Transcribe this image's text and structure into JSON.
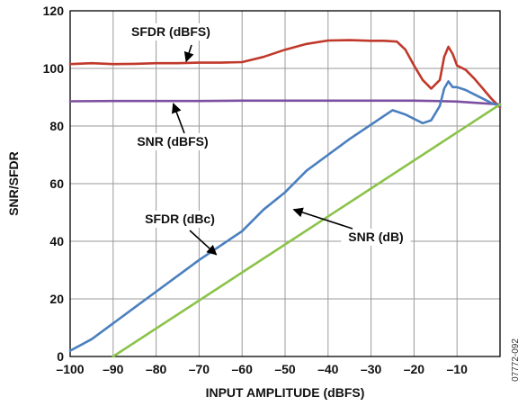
{
  "chart_data": {
    "type": "line",
    "xlabel": "INPUT AMPLITUDE (dBFS)",
    "ylabel": "SNR/SFDR",
    "xlim": [
      -100,
      0
    ],
    "ylim": [
      0,
      120
    ],
    "x_ticks": [
      "–100",
      "–90",
      "–80",
      "–70",
      "–60",
      "–50",
      "–40",
      "–30",
      "–20",
      "–10"
    ],
    "x_tick_values": [
      -100,
      -90,
      -80,
      -70,
      -60,
      -50,
      -40,
      -30,
      -20,
      -10
    ],
    "y_ticks": [
      "0",
      "20",
      "40",
      "60",
      "80",
      "100",
      "120"
    ],
    "y_tick_values": [
      0,
      20,
      40,
      60,
      80,
      100,
      120
    ],
    "grid": true,
    "series": [
      {
        "name": "SFDR (dBFS)",
        "color": "#c0392b",
        "x": [
          -100,
          -95,
          -90,
          -85,
          -80,
          -75,
          -70,
          -65,
          -60,
          -55,
          -50,
          -45,
          -40,
          -35,
          -30,
          -27,
          -24,
          -22,
          -20,
          -18,
          -16,
          -14,
          -13,
          -12,
          -11,
          -10,
          -8,
          -6,
          -4,
          -2,
          0
        ],
        "y": [
          101.5,
          101.8,
          101.5,
          101.6,
          101.8,
          101.8,
          102,
          102,
          102.2,
          104,
          106.5,
          108.5,
          109.7,
          109.8,
          109.6,
          109.6,
          109.3,
          106.5,
          101,
          96,
          93,
          96,
          104,
          107.5,
          105,
          101,
          99.5,
          96.5,
          93,
          89.5,
          86.5
        ]
      },
      {
        "name": "SNR (dBFS)",
        "color": "#7d4fa0",
        "x": [
          -100,
          -90,
          -80,
          -70,
          -60,
          -50,
          -40,
          -30,
          -20,
          -15,
          -10,
          -5,
          0
        ],
        "y": [
          88.6,
          88.7,
          88.7,
          88.7,
          88.8,
          88.8,
          88.8,
          88.8,
          88.8,
          88.7,
          88.5,
          88,
          87.5
        ]
      },
      {
        "name": "SFDR (dBc)",
        "color": "#4a7fbf",
        "x": [
          -100,
          -95,
          -90,
          -85,
          -80,
          -75,
          -70,
          -65,
          -60,
          -55,
          -50,
          -45,
          -40,
          -35,
          -30,
          -27,
          -25,
          -22,
          -20,
          -18,
          -16,
          -14,
          -13,
          -12,
          -11,
          -10,
          -8,
          -6,
          -4,
          -2,
          0
        ],
        "y": [
          2,
          6,
          11.5,
          17,
          22.5,
          28,
          33.5,
          38.5,
          43.5,
          51,
          57,
          64.5,
          70,
          75.5,
          80.5,
          83.5,
          85.5,
          84,
          82.5,
          81,
          82,
          87,
          93,
          95.5,
          93.5,
          93.5,
          92.5,
          91,
          89.5,
          88,
          87
        ]
      },
      {
        "name": "SNR (dB)",
        "color": "#8bc34a",
        "x": [
          -90,
          0
        ],
        "y": [
          0,
          87.5
        ]
      }
    ],
    "annotations": [
      {
        "text": "SFDR (dBFS)",
        "series": 0
      },
      {
        "text": "SNR (dBFS)",
        "series": 1
      },
      {
        "text": "SFDR (dBc)",
        "series": 2
      },
      {
        "text": "SNR (dB)",
        "series": 3
      }
    ]
  },
  "figure_id": "07772-092"
}
